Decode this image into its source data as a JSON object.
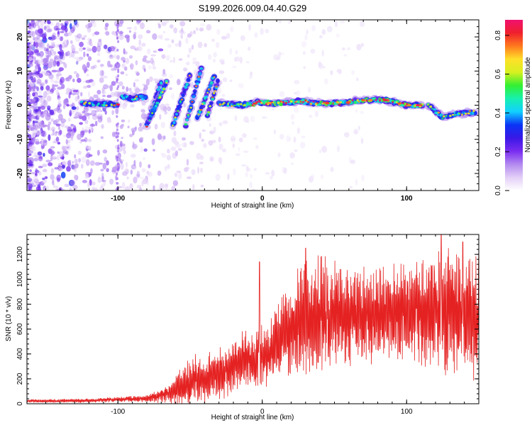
{
  "figure": {
    "title": "S199.2026.009.04.40.G29"
  },
  "chart_data": [
    {
      "type": "heatmap",
      "name": "spectrogram",
      "xlabel": "Height of straight line (km)",
      "ylabel": "Frequency (Hz)",
      "xlim": [
        -163,
        150
      ],
      "ylim": [
        -25,
        25
      ],
      "xticks": [
        -100,
        0,
        100
      ],
      "yticks": [
        -20,
        -10,
        0,
        10,
        20
      ],
      "colorbar": {
        "label": "Normalized spectral amplitude",
        "range": [
          0.0,
          0.88
        ],
        "ticks": [
          0.0,
          0.2,
          0.4,
          0.6,
          0.8
        ],
        "colormap": [
          "#ffffff",
          "#e3cff7",
          "#b38af0",
          "#7a2cf0",
          "#3a18e6",
          "#0a34f5",
          "#12d0ff",
          "#17f0b0",
          "#32f032",
          "#d6f020",
          "#ffe02a",
          "#ff7a1e",
          "#f0202d",
          "#f0106e"
        ]
      },
      "ridge_segments": [
        {
          "x": [
            -125,
            -110,
            -100
          ],
          "f": [
            0.5,
            0.3,
            0.2
          ]
        },
        {
          "x": [
            -97,
            -90,
            -85,
            -80
          ],
          "f": [
            2.5,
            1.8,
            2.5,
            2.0
          ]
        },
        {
          "x": [
            -80,
            -70
          ],
          "f": [
            -6,
            7
          ]
        },
        {
          "x": [
            -78,
            -66
          ],
          "f": [
            -4,
            7
          ]
        },
        {
          "x": [
            -62,
            -50
          ],
          "f": [
            -6,
            9
          ]
        },
        {
          "x": [
            -53,
            -42
          ],
          "f": [
            -6,
            11
          ]
        },
        {
          "x": [
            -45,
            -33
          ],
          "f": [
            -4,
            9
          ]
        },
        {
          "x": [
            -38,
            -30
          ],
          "f": [
            -3,
            8
          ]
        },
        {
          "x": [
            -30,
            -15,
            -5
          ],
          "f": [
            0.5,
            0.0,
            0.5
          ]
        },
        {
          "x": [
            -5,
            10,
            25,
            40,
            55,
            70,
            85,
            100,
            112
          ],
          "f": [
            1.0,
            0.5,
            1.2,
            0.5,
            0.6,
            1.5,
            1.5,
            0.0,
            0.0
          ]
        },
        {
          "x": [
            115,
            125,
            135,
            148
          ],
          "f": [
            0.0,
            -3.5,
            -2.5,
            -2.0
          ]
        }
      ]
    },
    {
      "type": "line",
      "name": "snr",
      "color": "#e52222",
      "xlabel": "Height of straight line (km)",
      "ylabel": "SNR (10 * v/v)",
      "xlim": [
        -163,
        150
      ],
      "ylim": [
        0,
        1360
      ],
      "xticks": [
        -100,
        0,
        100
      ],
      "yticks": [
        0,
        200,
        400,
        600,
        800,
        1000,
        1200
      ],
      "envelope": {
        "x": [
          -163,
          -120,
          -100,
          -80,
          -65,
          -55,
          -50,
          -40,
          -30,
          -20,
          -10,
          -5,
          -2,
          0,
          5,
          10,
          20,
          30,
          40,
          60,
          80,
          100,
          120,
          130,
          140,
          150
        ],
        "mean": [
          22,
          25,
          35,
          40,
          80,
          140,
          170,
          200,
          240,
          300,
          380,
          330,
          450,
          380,
          400,
          520,
          600,
          680,
          700,
          700,
          720,
          720,
          740,
          760,
          740,
          700
        ],
        "amp": [
          15,
          18,
          22,
          30,
          80,
          200,
          240,
          200,
          230,
          240,
          250,
          260,
          300,
          280,
          260,
          320,
          420,
          520,
          500,
          430,
          430,
          420,
          520,
          560,
          560,
          560
        ]
      },
      "spikes": [
        {
          "x": -2,
          "y": 1140
        },
        {
          "x": 124,
          "y": 1360
        },
        {
          "x": 139,
          "y": 1300
        },
        {
          "x": 30,
          "y": 1250
        },
        {
          "x": 150,
          "y": 1280
        }
      ]
    }
  ]
}
